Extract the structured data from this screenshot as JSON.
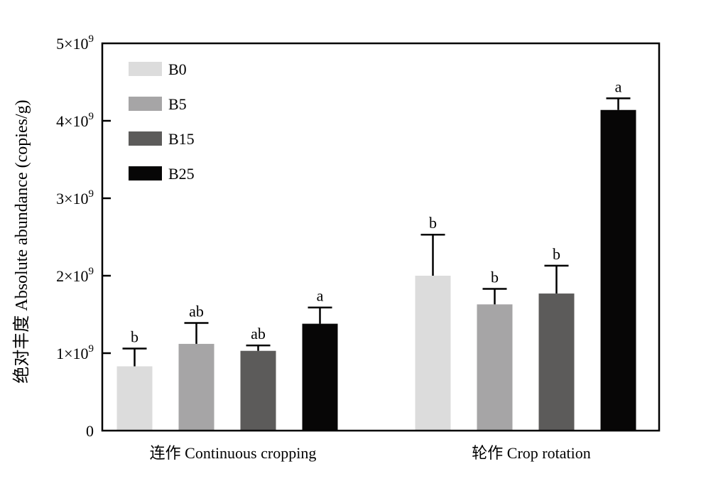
{
  "chart_data": {
    "type": "bar",
    "title": "",
    "ylabel": "绝对丰度 Absolute abundance (copies/g)",
    "xlabel": "",
    "ylim": [
      0,
      5000000000
    ],
    "yticks": [
      {
        "value": 0,
        "label": "0",
        "exp": ""
      },
      {
        "value": 1000000000,
        "label": "1×10",
        "exp": "9"
      },
      {
        "value": 2000000000,
        "label": "2×10",
        "exp": "9"
      },
      {
        "value": 3000000000,
        "label": "3×10",
        "exp": "9"
      },
      {
        "value": 4000000000,
        "label": "4×10",
        "exp": "9"
      },
      {
        "value": 5000000000,
        "label": "5×10",
        "exp": "9"
      }
    ],
    "categories": [
      "连作 Continuous cropping",
      "轮作 Crop rotation"
    ],
    "legend_position": "top-left",
    "grid": false,
    "series": [
      {
        "name": "B0",
        "color": "#dcdcdc",
        "values": [
          830000000,
          2000000000
        ],
        "errors": [
          230000000,
          530000000
        ],
        "labels": [
          "b",
          "b"
        ]
      },
      {
        "name": "B5",
        "color": "#a6a5a6",
        "values": [
          1120000000,
          1630000000
        ],
        "errors": [
          270000000,
          200000000
        ],
        "labels": [
          "ab",
          "b"
        ]
      },
      {
        "name": "B15",
        "color": "#5c5b5a",
        "values": [
          1030000000,
          1770000000
        ],
        "errors": [
          70000000,
          360000000
        ],
        "labels": [
          "ab",
          "b"
        ]
      },
      {
        "name": "B25",
        "color": "#070606",
        "values": [
          1380000000,
          4140000000
        ],
        "errors": [
          210000000,
          150000000
        ],
        "labels": [
          "a",
          "a"
        ]
      }
    ]
  }
}
